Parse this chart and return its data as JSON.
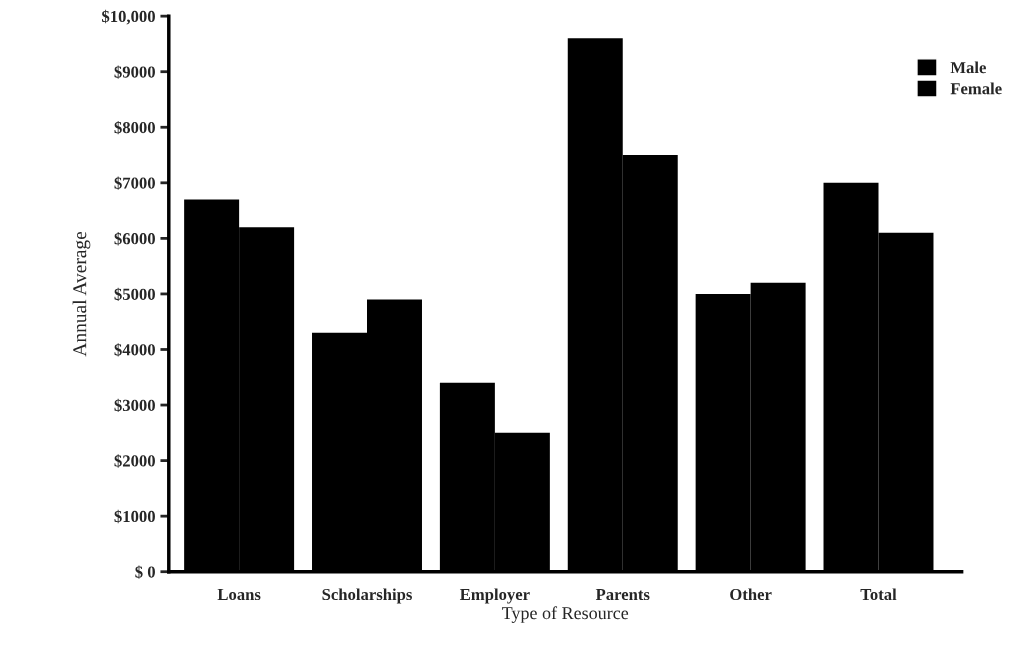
{
  "chart_data": {
    "type": "bar",
    "xlabel": "Type of Resource",
    "ylabel": "Annual Average",
    "categories": [
      "Loans",
      "Scholarships",
      "Employer",
      "Parents",
      "Other",
      "Total"
    ],
    "series": [
      {
        "name": "Male",
        "color": "#000000",
        "values": [
          6700,
          4300,
          3400,
          9600,
          5000,
          7000
        ]
      },
      {
        "name": "Female",
        "color": "#000000",
        "values": [
          6200,
          4900,
          2500,
          7500,
          5200,
          6100
        ]
      }
    ],
    "ylim": [
      0,
      10000
    ],
    "yticks": [
      {
        "value": 0,
        "label": "$ 0"
      },
      {
        "value": 1000,
        "label": "$1000"
      },
      {
        "value": 2000,
        "label": "$2000"
      },
      {
        "value": 3000,
        "label": "$3000"
      },
      {
        "value": 4000,
        "label": "$4000"
      },
      {
        "value": 5000,
        "label": "$5000"
      },
      {
        "value": 6000,
        "label": "$6000"
      },
      {
        "value": 7000,
        "label": "$7000"
      },
      {
        "value": 8000,
        "label": "$8000"
      },
      {
        "value": 9000,
        "label": "$9000"
      },
      {
        "value": 10000,
        "label": "$10,000"
      }
    ],
    "grid": false,
    "legend": "top right"
  }
}
